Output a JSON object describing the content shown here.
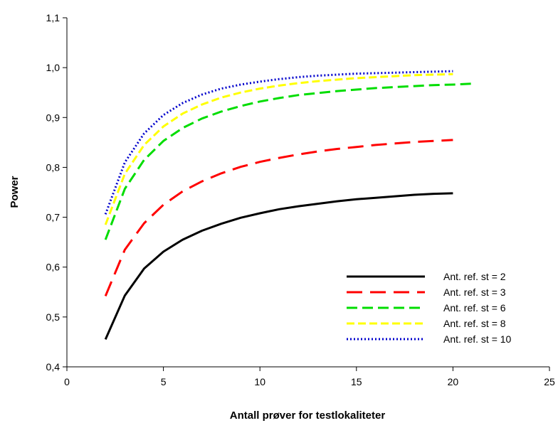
{
  "chart_data": {
    "type": "line",
    "title": "",
    "xlabel": "Antall prøver for testlokaliteter",
    "ylabel": "Power",
    "xlim": [
      0,
      25
    ],
    "ylim": [
      0.4,
      1.1
    ],
    "xticks": [
      0,
      5,
      10,
      15,
      20,
      25
    ],
    "xtick_labels": [
      "0",
      "5",
      "10",
      "15",
      "20",
      "25"
    ],
    "yticks": [
      0.4,
      0.5,
      0.6,
      0.7,
      0.8,
      0.9,
      1.0,
      1.1
    ],
    "ytick_labels": [
      "0,4",
      "0,5",
      "0,6",
      "0,7",
      "0,8",
      "0,9",
      "1,0",
      "1,1"
    ],
    "grid": false,
    "legend_position": "bottom-right",
    "series": [
      {
        "name": "Ant. ref. st = 2",
        "color": "#000000",
        "style": "solid",
        "x": [
          2,
          3,
          4,
          5,
          6,
          7,
          8,
          9,
          10,
          11,
          12,
          13,
          14,
          15,
          16,
          17,
          18,
          19,
          20
        ],
        "y": [
          0.455,
          0.543,
          0.597,
          0.631,
          0.655,
          0.673,
          0.687,
          0.699,
          0.708,
          0.716,
          0.722,
          0.727,
          0.732,
          0.736,
          0.739,
          0.742,
          0.745,
          0.747,
          0.748
        ]
      },
      {
        "name": "Ant. ref. st = 3",
        "color": "#ff0000",
        "style": "long-dash",
        "x": [
          2,
          3,
          4,
          5,
          6,
          7,
          8,
          9,
          10,
          11,
          12,
          13,
          14,
          15,
          16,
          17,
          18,
          19,
          20
        ],
        "y": [
          0.542,
          0.635,
          0.688,
          0.725,
          0.752,
          0.772,
          0.788,
          0.801,
          0.811,
          0.819,
          0.826,
          0.832,
          0.837,
          0.841,
          0.845,
          0.848,
          0.851,
          0.853,
          0.855
        ]
      },
      {
        "name": "Ant. ref. st = 6",
        "color": "#00dd00",
        "style": "dash",
        "x": [
          2,
          3,
          4,
          5,
          6,
          7,
          8,
          9,
          10,
          11,
          12,
          13,
          14,
          15,
          16,
          17,
          18,
          19,
          20,
          21
        ],
        "y": [
          0.655,
          0.757,
          0.815,
          0.853,
          0.879,
          0.898,
          0.912,
          0.923,
          0.932,
          0.939,
          0.945,
          0.949,
          0.953,
          0.956,
          0.959,
          0.961,
          0.963,
          0.965,
          0.966,
          0.968
        ]
      },
      {
        "name": "Ant. ref. st = 8",
        "color": "#ffff00",
        "style": "short-dash",
        "x": [
          2,
          3,
          4,
          5,
          6,
          7,
          8,
          9,
          10,
          11,
          12,
          13,
          14,
          15,
          16,
          17,
          18,
          19,
          20
        ],
        "y": [
          0.685,
          0.787,
          0.845,
          0.882,
          0.908,
          0.926,
          0.94,
          0.95,
          0.958,
          0.964,
          0.969,
          0.973,
          0.976,
          0.979,
          0.981,
          0.983,
          0.985,
          0.986,
          0.987
        ]
      },
      {
        "name": "Ant. ref. st = 10",
        "color": "#0000cc",
        "style": "dotted",
        "x": [
          2,
          3,
          4,
          5,
          6,
          7,
          8,
          9,
          10,
          11,
          12,
          13,
          14,
          15,
          16,
          17,
          18,
          19,
          20
        ],
        "y": [
          0.706,
          0.81,
          0.868,
          0.905,
          0.929,
          0.946,
          0.958,
          0.966,
          0.972,
          0.977,
          0.981,
          0.984,
          0.986,
          0.988,
          0.989,
          0.99,
          0.991,
          0.992,
          0.993
        ]
      }
    ]
  }
}
